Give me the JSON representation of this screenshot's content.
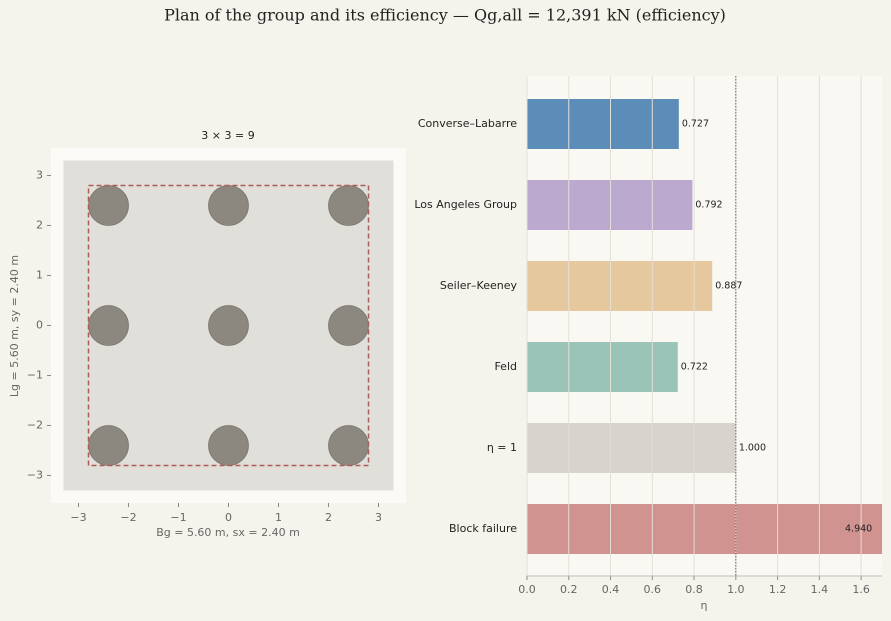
{
  "title": "Plan of the group and its efficiency — Qg,all = 12,391 kN (efficiency)",
  "chart_data": [
    {
      "type": "scatter",
      "title": "3 × 3 = 9",
      "x_label": "Bg = 5.60 m, sx = 2.40 m",
      "y_label": "Lg = 5.60 m, sy = 2.40 m",
      "x": [
        -2.4,
        0,
        2.4,
        -2.4,
        0,
        2.4,
        -2.4,
        0,
        2.4
      ],
      "y": [
        2.4,
        2.4,
        2.4,
        0,
        0,
        0,
        -2.4,
        -2.4,
        -2.4
      ],
      "marker_size": 0.8,
      "color": "#8c8880",
      "cap": {
        "x": [
          -3.3,
          3.3
        ],
        "y": [
          -3.3,
          3.3
        ],
        "color": "#e0dfd9"
      },
      "block": {
        "x": [
          -2.8,
          2.8
        ],
        "y": [
          -2.8,
          2.8
        ],
        "color": "#b05a56"
      },
      "xlim": [
        -3.55,
        3.55
      ],
      "ylim": [
        -3.55,
        3.55
      ],
      "xticks": [
        {
          "value": -3,
          "label": "−3"
        },
        {
          "value": -2,
          "label": "−2"
        },
        {
          "value": -1,
          "label": "−1"
        },
        0,
        1,
        2,
        3
      ],
      "yticks": [
        {
          "value": -3,
          "label": "−3"
        },
        {
          "value": -2,
          "label": "−2"
        },
        {
          "value": -1,
          "label": "−1"
        },
        0,
        1,
        2,
        3
      ]
    },
    {
      "type": "barh",
      "x_label": "η",
      "categories": [
        "Converse–Labarre",
        "Los Angeles Group",
        "Seiler–Keeney",
        "Feld",
        "η = 1",
        "Block failure"
      ],
      "values": [
        0.727,
        0.792,
        0.887,
        0.722,
        1.0,
        4.94
      ],
      "value_labels": [
        "0.727",
        "0.792",
        "0.887",
        "0.722",
        "1.000",
        "4.940"
      ],
      "colors": [
        "#5b8db8",
        "#bca9d0",
        "#e6c89e",
        "#9bc4b8",
        "#d6d4cc",
        "#d09390"
      ],
      "reference_line": 1.0,
      "grid": true,
      "xlim": [
        0,
        1.7
      ],
      "xticks": [
        {
          "value": 0,
          "label": "0.0"
        },
        {
          "value": 0.2,
          "label": "0.2"
        },
        {
          "value": 0.4,
          "label": "0.4"
        },
        {
          "value": 0.6,
          "label": "0.6"
        },
        {
          "value": 0.8,
          "label": "0.8"
        },
        {
          "value": 1.0,
          "label": "1.0"
        },
        {
          "value": 1.2,
          "label": "1.2"
        },
        {
          "value": 1.4,
          "label": "1.4"
        },
        {
          "value": 1.6,
          "label": "1.6"
        }
      ]
    }
  ]
}
